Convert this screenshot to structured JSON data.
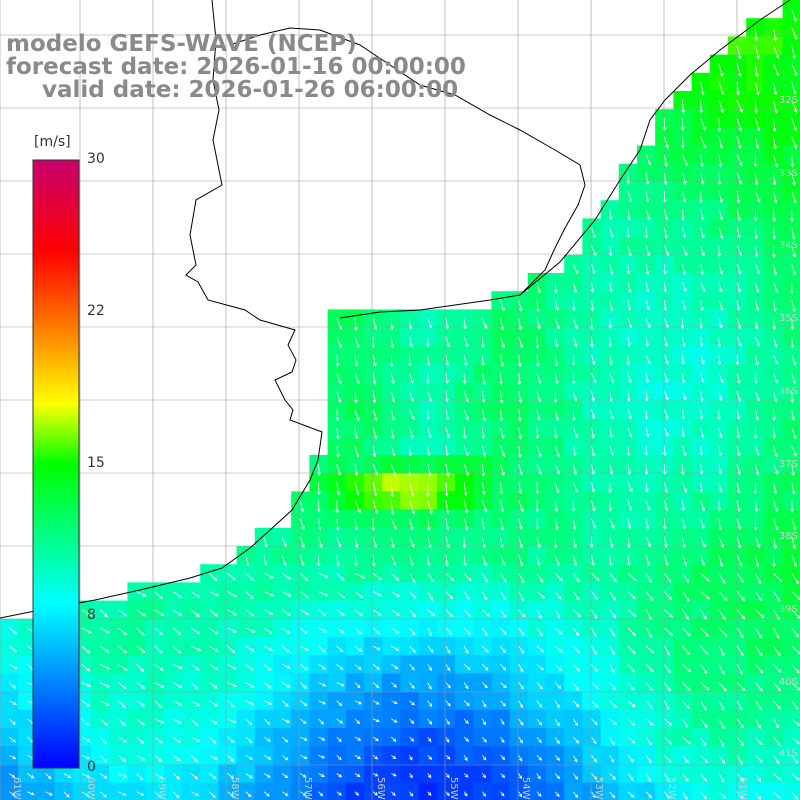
{
  "title": {
    "model": "modelo GEFS-WAVE (NCEP)",
    "forecast": "forecast date: 2026-01-16 00:00:00",
    "valid": "valid date: 2026-01-26 06:00:00"
  },
  "colorbar": {
    "unit": "[m/s]",
    "ticks": [
      "30",
      "22",
      "15",
      "8",
      "0"
    ],
    "tick_values": [
      30,
      22,
      15,
      8,
      0
    ],
    "vmin": 0,
    "vmax": 30,
    "colors": [
      "#0000ff",
      "#00c8ff",
      "#00ffff",
      "#00ff00",
      "#ffff00",
      "#ff8000",
      "#ff0000",
      "#c8006e"
    ]
  },
  "map": {
    "parameter": "wind speed",
    "lat_labels": [
      "32S",
      "33S",
      "34S",
      "35S",
      "36S",
      "37S",
      "38S",
      "39S",
      "40S",
      "41S"
    ],
    "lon_labels": [
      "61W",
      "60W",
      "59W",
      "58W",
      "57W",
      "56W",
      "55W",
      "54W",
      "53W",
      "52W",
      "51W"
    ],
    "land_color": "#ffffff",
    "coast_color": "#000000",
    "grid_color": "#999999"
  }
}
